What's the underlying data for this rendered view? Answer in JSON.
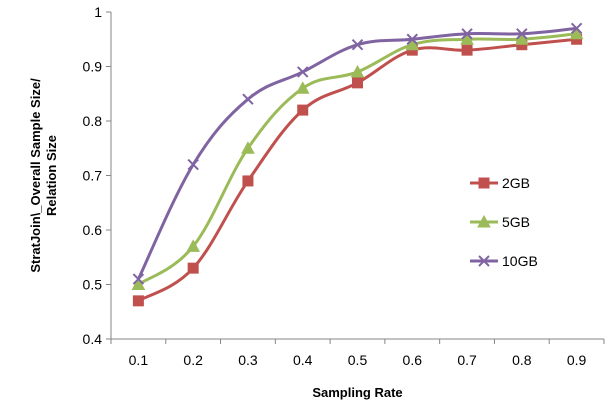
{
  "chart_data": {
    "type": "line",
    "title": "",
    "xlabel": "Sampling Rate",
    "ylabel": "StratJoin\\_Overall Sample Size/\nRelation Size",
    "x": [
      0.1,
      0.2,
      0.3,
      0.4,
      0.5,
      0.6,
      0.7,
      0.8,
      0.9
    ],
    "xtick_labels": [
      "0.1",
      "0.2",
      "0.3",
      "0.4",
      "0.5",
      "0.6",
      "0.7",
      "0.8",
      "0.9"
    ],
    "ylim": [
      0.4,
      1.0
    ],
    "ytick_labels": [
      "0.4",
      "0.5",
      "0.6",
      "0.7",
      "0.8",
      "0.9",
      "1"
    ],
    "grid": false,
    "legend_position": "right",
    "series": [
      {
        "name": "2GB",
        "color": "#C0504D",
        "marker": "square",
        "values": [
          0.47,
          0.53,
          0.69,
          0.82,
          0.87,
          0.93,
          0.93,
          0.94,
          0.95
        ]
      },
      {
        "name": "5GB",
        "color": "#9BBB59",
        "marker": "triangle",
        "values": [
          0.5,
          0.57,
          0.75,
          0.86,
          0.89,
          0.94,
          0.95,
          0.95,
          0.96
        ]
      },
      {
        "name": "10GB",
        "color": "#8064A2",
        "marker": "x",
        "values": [
          0.51,
          0.72,
          0.84,
          0.89,
          0.94,
          0.95,
          0.96,
          0.96,
          0.97
        ]
      }
    ]
  }
}
